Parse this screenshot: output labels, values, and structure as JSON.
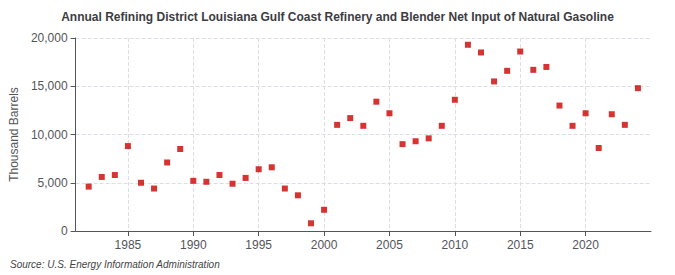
{
  "chart_data": {
    "type": "scatter",
    "title": "Annual Refining District Louisiana Gulf Coast Refinery and Blender Net Input of Natural Gasoline",
    "ylabel": "Thousand Barrels",
    "source": "Source: U.S. Energy Information Administration",
    "color": "#cc0000",
    "marker": "square",
    "grid": true,
    "xlim": [
      1981,
      2025
    ],
    "ylim": [
      0,
      20000
    ],
    "xticks": [
      1985,
      1990,
      1995,
      2000,
      2005,
      2010,
      2015,
      2020
    ],
    "yticks": [
      0,
      {
        "value": 5000,
        "label": "5,000"
      },
      {
        "value": 10000,
        "label": "10,000"
      },
      {
        "value": 15000,
        "label": "15,000"
      },
      {
        "value": 20000,
        "label": "20,000"
      }
    ],
    "x": [
      1982,
      1983,
      1984,
      1985,
      1986,
      1987,
      1988,
      1989,
      1990,
      1991,
      1992,
      1993,
      1994,
      1995,
      1996,
      1997,
      1998,
      1999,
      2000,
      2001,
      2002,
      2003,
      2004,
      2005,
      2006,
      2007,
      2008,
      2009,
      2010,
      2011,
      2012,
      2013,
      2014,
      2015,
      2016,
      2017,
      2018,
      2019,
      2020,
      2021,
      2022,
      2023,
      2024
    ],
    "values": [
      4600,
      5600,
      5800,
      8800,
      5000,
      4400,
      7100,
      8500,
      5200,
      5100,
      5800,
      4900,
      5500,
      6400,
      6600,
      4400,
      3700,
      800,
      2200,
      11000,
      11700,
      10900,
      13400,
      12200,
      9000,
      9300,
      9600,
      10900,
      13600,
      19300,
      18500,
      15500,
      16600,
      18600,
      16700,
      17000,
      13000,
      10900,
      12200,
      8600,
      12100,
      11000,
      14800
    ]
  }
}
